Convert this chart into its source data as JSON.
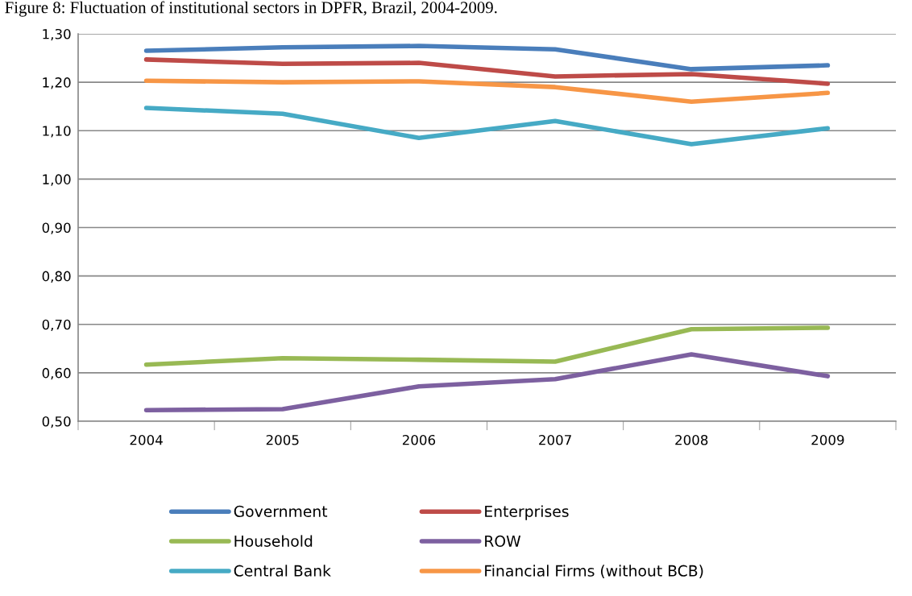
{
  "chart_data": {
    "type": "line",
    "title": "Figure 8: Fluctuation of institutional sectors in DPFR, Brazil, 2004-2009.",
    "categories": [
      "2004",
      "2005",
      "2006",
      "2007",
      "2008",
      "2009"
    ],
    "series": [
      {
        "name": "Government",
        "color": "#4a7ebb",
        "values": [
          1.265,
          1.272,
          1.275,
          1.268,
          1.227,
          1.235
        ]
      },
      {
        "name": "Enterprises",
        "color": "#be4b48",
        "values": [
          1.247,
          1.238,
          1.24,
          1.212,
          1.217,
          1.197
        ]
      },
      {
        "name": "Household",
        "color": "#98b954",
        "values": [
          0.617,
          0.63,
          0.627,
          0.623,
          0.69,
          0.693
        ]
      },
      {
        "name": "ROW",
        "color": "#7d60a0",
        "values": [
          0.523,
          0.525,
          0.572,
          0.587,
          0.638,
          0.593
        ]
      },
      {
        "name": "Central Bank",
        "color": "#46aac5",
        "values": [
          1.147,
          1.135,
          1.085,
          1.12,
          1.072,
          1.105
        ]
      },
      {
        "name": "Financial Firms (without BCB)",
        "color": "#f79646",
        "values": [
          1.203,
          1.2,
          1.202,
          1.19,
          1.16,
          1.178
        ]
      }
    ],
    "ylim": [
      0.5,
      1.3
    ],
    "yticks": [
      {
        "value": 0.5,
        "label": "0,50"
      },
      {
        "value": 0.6,
        "label": "0,60"
      },
      {
        "value": 0.7,
        "label": "0,70"
      },
      {
        "value": 0.8,
        "label": "0,80"
      },
      {
        "value": 0.9,
        "label": "0,90"
      },
      {
        "value": 1.0,
        "label": "1,00"
      },
      {
        "value": 1.1,
        "label": "1,10"
      },
      {
        "value": 1.2,
        "label": "1,20"
      },
      {
        "value": 1.3,
        "label": "1,30"
      }
    ],
    "grid": "y",
    "legend": "bottom",
    "marker": "none",
    "line_style": "solid"
  }
}
